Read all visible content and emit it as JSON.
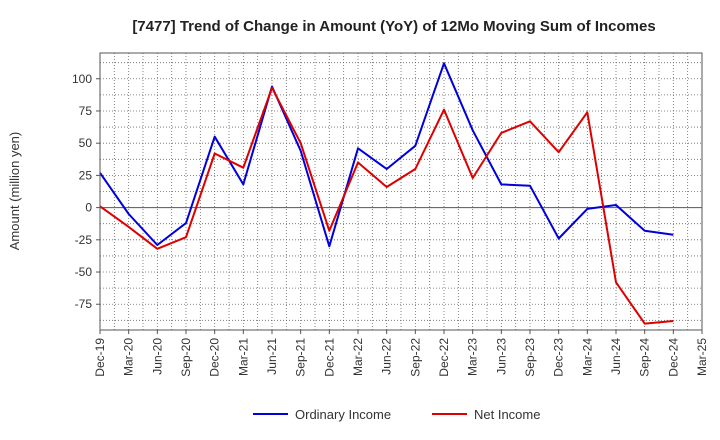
{
  "chart_data": {
    "type": "line",
    "title": "[7477]  Trend of Change in Amount (YoY) of 12Mo Moving Sum of Incomes",
    "xlabel": "",
    "ylabel": "Amount (million yen)",
    "ylim": [
      -95,
      120
    ],
    "yticks": [
      100,
      75,
      50,
      25,
      0,
      -25,
      -50,
      -75
    ],
    "grid": true,
    "legend_position": "bottom-center",
    "categories": [
      "Dec-19",
      "Mar-20",
      "Jun-20",
      "Sep-20",
      "Dec-20",
      "Mar-21",
      "Jun-21",
      "Sep-21",
      "Dec-21",
      "Mar-22",
      "Jun-22",
      "Sep-22",
      "Dec-22",
      "Mar-23",
      "Jun-23",
      "Sep-23",
      "Dec-23",
      "Mar-24",
      "Jun-24",
      "Sep-24",
      "Dec-24",
      "Mar-25"
    ],
    "series": [
      {
        "name": "Ordinary Income",
        "color": "#0000dd",
        "values": [
          27,
          -5,
          -29,
          -12,
          55,
          18,
          94,
          44,
          -30,
          46,
          30,
          48,
          112,
          60,
          18,
          17,
          -24,
          -1,
          2,
          -18,
          -21,
          null
        ]
      },
      {
        "name": "Net Income",
        "color": "#dd0000",
        "values": [
          1,
          -15,
          -32,
          -23,
          42,
          31,
          93,
          50,
          -18,
          35,
          16,
          30,
          76,
          23,
          58,
          67,
          43,
          74,
          -58,
          -90,
          -88,
          null
        ]
      }
    ]
  }
}
